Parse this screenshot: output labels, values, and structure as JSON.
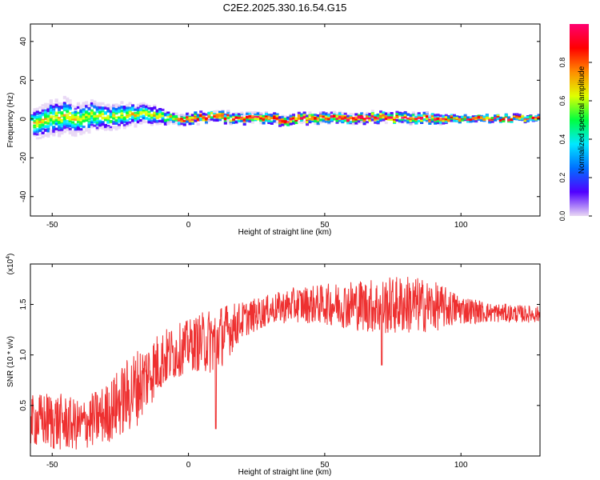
{
  "title": "C2E2.2025.330.16.54.G15",
  "chart_data": [
    {
      "type": "heatmap",
      "xlabel": "Height of straight line (km)",
      "ylabel": "Frequency (Hz)",
      "xlim": [
        -58,
        129
      ],
      "ylim": [
        -50,
        49
      ],
      "xticks": [
        -50,
        0,
        50,
        100
      ],
      "yticks": [
        -40,
        -20,
        0,
        20,
        40
      ],
      "ridge": [
        {
          "x": -57,
          "y": -2,
          "spread": 6
        },
        {
          "x": -50,
          "y": 0,
          "spread": 7
        },
        {
          "x": -45,
          "y": 2,
          "spread": 7
        },
        {
          "x": -40,
          "y": -1,
          "spread": 6
        },
        {
          "x": -35,
          "y": 2,
          "spread": 6
        },
        {
          "x": -30,
          "y": 0,
          "spread": 5
        },
        {
          "x": -25,
          "y": 2,
          "spread": 5
        },
        {
          "x": -20,
          "y": 2,
          "spread": 4
        },
        {
          "x": -15,
          "y": 3,
          "spread": 4
        },
        {
          "x": -10,
          "y": 1,
          "spread": 3
        },
        {
          "x": -5,
          "y": 0,
          "spread": 2
        },
        {
          "x": 0,
          "y": 0,
          "spread": 2
        },
        {
          "x": 10,
          "y": 1,
          "spread": 2
        },
        {
          "x": 20,
          "y": 0,
          "spread": 2
        },
        {
          "x": 30,
          "y": 0,
          "spread": 2
        },
        {
          "x": 35,
          "y": -1,
          "spread": 2
        },
        {
          "x": 40,
          "y": 0,
          "spread": 2
        },
        {
          "x": 60,
          "y": 0,
          "spread": 2
        },
        {
          "x": 70,
          "y": 1,
          "spread": 2
        },
        {
          "x": 80,
          "y": 0,
          "spread": 2
        },
        {
          "x": 90,
          "y": 0,
          "spread": 2
        },
        {
          "x": 100,
          "y": 0,
          "spread": 1
        },
        {
          "x": 129,
          "y": 0,
          "spread": 1
        }
      ],
      "colorbar": {
        "label": "Normalized spectral amplitude",
        "range": [
          0,
          1
        ],
        "ticks": [
          0.0,
          0.2,
          0.4,
          0.6,
          0.8
        ],
        "tick_labels": [
          "0.0",
          "0.2",
          "0.4",
          "0.6",
          "0.8"
        ],
        "colors": [
          "#e9d8f4",
          "#5000ff",
          "#0070ff",
          "#00e8ff",
          "#00ff40",
          "#e0ff00",
          "#ff8c00",
          "#ff0000",
          "#ff0070"
        ]
      }
    },
    {
      "type": "line",
      "xlabel": "Height of straight line (km)",
      "ylabel": "SNR (10 * v/v)",
      "exponent_label": "(x10",
      "exponent_power": "4",
      "exponent_close": ")",
      "xlim": [
        -58,
        129
      ],
      "ylim": [
        0.0,
        1.9
      ],
      "xticks": [
        -50,
        0,
        50,
        100
      ],
      "yticks": [
        0.5,
        1.0,
        1.5
      ],
      "ytick_labels": [
        "0.5",
        "1.0",
        "1.5"
      ],
      "color": "#ee3030",
      "envelope": [
        {
          "x": -58,
          "mean": 0.35,
          "amp": 0.25
        },
        {
          "x": -50,
          "mean": 0.35,
          "amp": 0.3
        },
        {
          "x": -40,
          "mean": 0.3,
          "amp": 0.25
        },
        {
          "x": -30,
          "mean": 0.42,
          "amp": 0.3
        },
        {
          "x": -20,
          "mean": 0.65,
          "amp": 0.4
        },
        {
          "x": -10,
          "mean": 0.95,
          "amp": 0.3
        },
        {
          "x": 0,
          "mean": 1.1,
          "amp": 0.25
        },
        {
          "x": 10,
          "mean": 1.15,
          "amp": 0.35
        },
        {
          "x": 20,
          "mean": 1.35,
          "amp": 0.18
        },
        {
          "x": 30,
          "mean": 1.45,
          "amp": 0.15
        },
        {
          "x": 40,
          "mean": 1.5,
          "amp": 0.18
        },
        {
          "x": 50,
          "mean": 1.5,
          "amp": 0.2
        },
        {
          "x": 60,
          "mean": 1.5,
          "amp": 0.25
        },
        {
          "x": 70,
          "mean": 1.48,
          "amp": 0.28
        },
        {
          "x": 80,
          "mean": 1.5,
          "amp": 0.3
        },
        {
          "x": 90,
          "mean": 1.48,
          "amp": 0.25
        },
        {
          "x": 100,
          "mean": 1.45,
          "amp": 0.15
        },
        {
          "x": 110,
          "mean": 1.42,
          "amp": 0.1
        },
        {
          "x": 129,
          "mean": 1.4,
          "amp": 0.08
        }
      ],
      "dips": [
        {
          "x": 10,
          "y": 0.27
        },
        {
          "x": 71,
          "y": 0.9
        }
      ]
    }
  ]
}
